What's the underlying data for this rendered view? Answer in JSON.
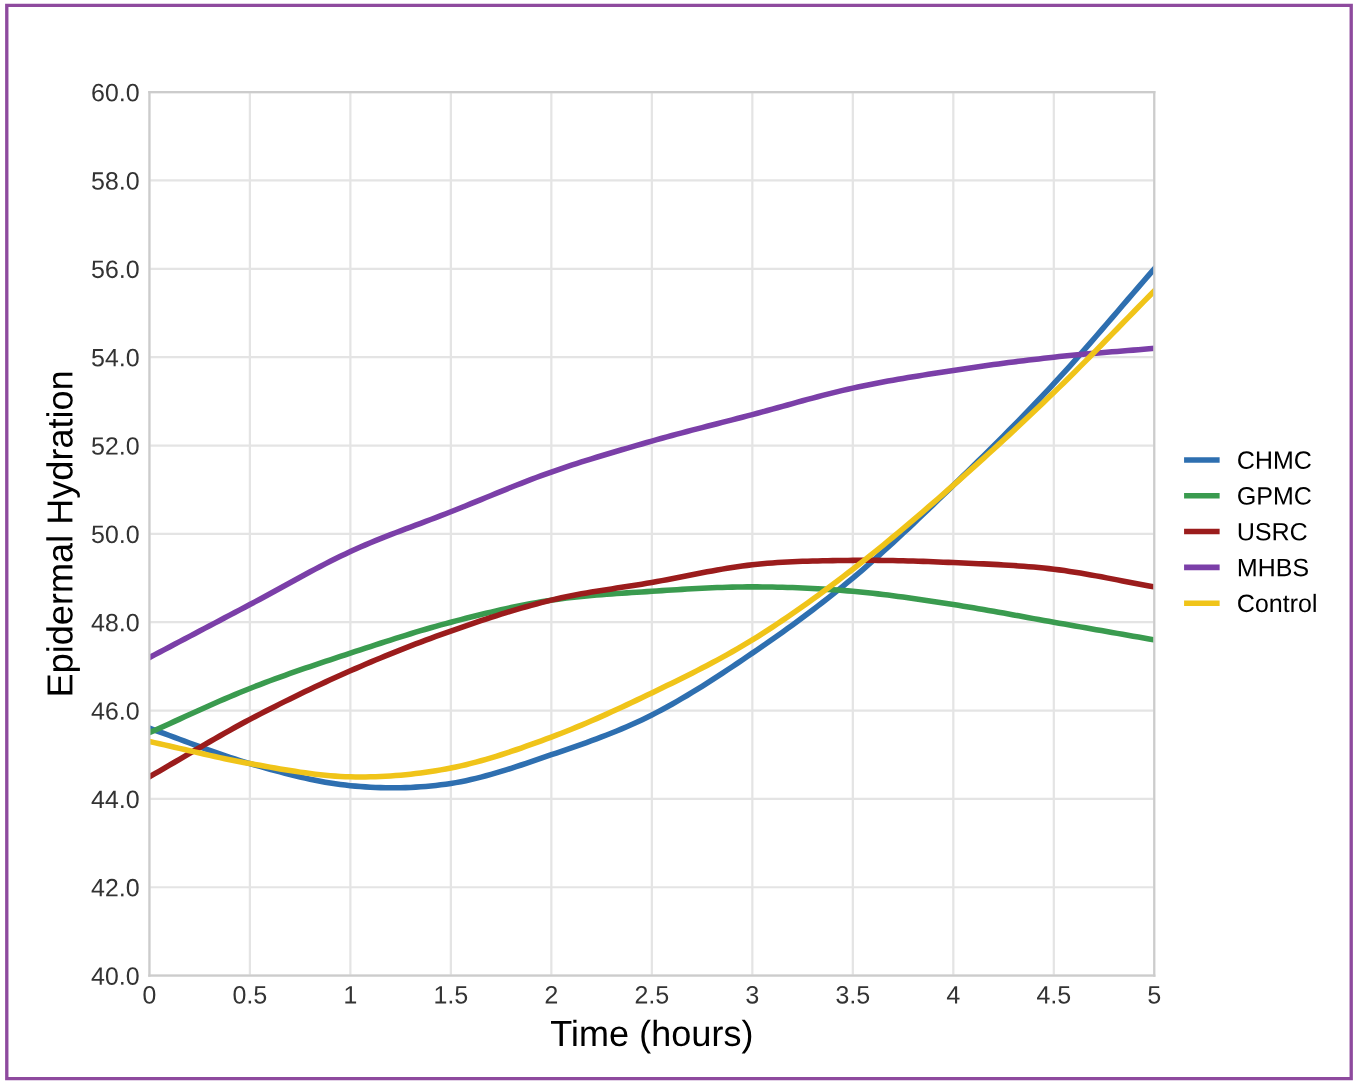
{
  "chart_data": {
    "type": "line",
    "xlabel": "Time (hours)",
    "ylabel": "Epidermal Hydration",
    "x": [
      0,
      0.5,
      1,
      1.5,
      2,
      2.5,
      3,
      3.5,
      4,
      4.5,
      5
    ],
    "series": [
      {
        "name": "CHMC",
        "color": "#2e6fb0",
        "values": [
          45.6,
          44.8,
          44.3,
          44.35,
          45.0,
          45.9,
          47.3,
          49.0,
          51.1,
          53.4,
          56.0
        ]
      },
      {
        "name": "GPMC",
        "color": "#3a9b4f",
        "values": [
          45.5,
          46.5,
          47.3,
          48.0,
          48.5,
          48.7,
          48.8,
          48.7,
          48.4,
          48.0,
          47.6
        ]
      },
      {
        "name": "USRC",
        "color": "#9b1c1c",
        "values": [
          44.5,
          45.8,
          46.9,
          47.8,
          48.5,
          48.9,
          49.3,
          49.4,
          49.35,
          49.2,
          48.8
        ]
      },
      {
        "name": "MHBS",
        "color": "#7b3fa8",
        "values": [
          47.2,
          48.4,
          49.6,
          50.5,
          51.4,
          52.1,
          52.7,
          53.3,
          53.7,
          54.0,
          54.2
        ]
      },
      {
        "name": "Control",
        "color": "#f0c419",
        "values": [
          45.3,
          44.8,
          44.5,
          44.7,
          45.4,
          46.4,
          47.6,
          49.2,
          51.1,
          53.2,
          55.5
        ]
      }
    ],
    "xlim": [
      0,
      5
    ],
    "xticks": [
      0,
      0.5,
      1,
      1.5,
      2,
      2.5,
      3,
      3.5,
      4,
      4.5,
      5
    ],
    "ylim": [
      40,
      60
    ],
    "yticks": [
      {
        "value": 40,
        "label": "40.0"
      },
      {
        "value": 42,
        "label": "42.0"
      },
      {
        "value": 44,
        "label": "44.0"
      },
      {
        "value": 46,
        "label": "46.0"
      },
      {
        "value": 48,
        "label": "48.0"
      },
      {
        "value": 50,
        "label": "50.0"
      },
      {
        "value": 52,
        "label": "52.0"
      },
      {
        "value": 54,
        "label": "54.0"
      },
      {
        "value": 56,
        "label": "56.0"
      },
      {
        "value": 58,
        "label": "58.0"
      },
      {
        "value": 60,
        "label": "60.0"
      }
    ],
    "grid": true,
    "legend": "right",
    "marker": "none",
    "line_style": "solid"
  }
}
